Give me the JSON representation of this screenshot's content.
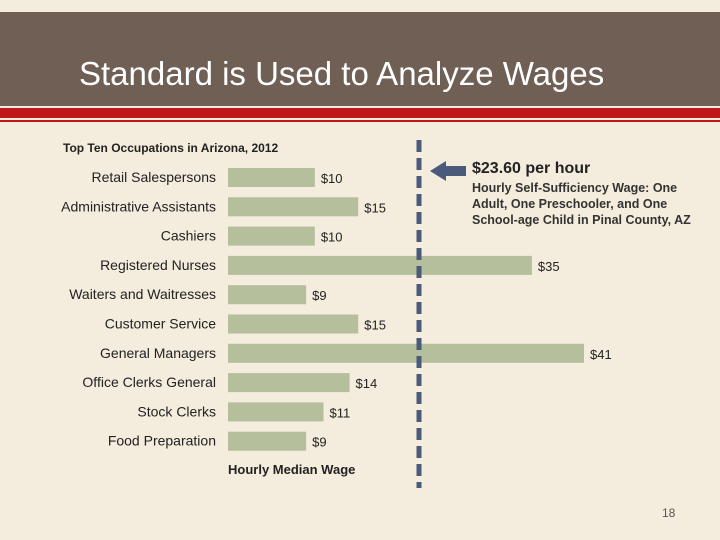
{
  "slide": {
    "title": "Standard is Used to Analyze Wages",
    "page_number": "18"
  },
  "callout": {
    "value": "$23.60 per hour",
    "description": "Hourly Self-Sufficiency Wage: One Adult, One Preschooler, and One School-age Child in Pinal County, AZ",
    "reference_value": 23.6
  },
  "colors": {
    "bar": "#b5bf9c",
    "title_band": "#6f5f55",
    "accent_red": "#c01818",
    "reference_line": "#4a5a7a"
  },
  "chart_data": {
    "type": "bar",
    "orientation": "horizontal",
    "title": "Top Ten Occupations  in Arizona,  2012",
    "xlabel": "Hourly Median Wage",
    "ylabel": "",
    "categories": [
      "Retail Salespersons",
      "Administrative Assistants",
      "Cashiers",
      "Registered Nurses",
      "Waiters and Waitresses",
      "Customer Service",
      "General Managers",
      "Office Clerks General",
      "Stock Clerks",
      "Food Preparation"
    ],
    "values": [
      10,
      15,
      10,
      35,
      9,
      15,
      41,
      14,
      11,
      9
    ],
    "value_labels": [
      "$10",
      "$15",
      "$10",
      "$35",
      "$9",
      "$15",
      "$41",
      "$14",
      "$11",
      "$9"
    ],
    "xlim": [
      0,
      41
    ],
    "grid": false,
    "legend": "none"
  }
}
